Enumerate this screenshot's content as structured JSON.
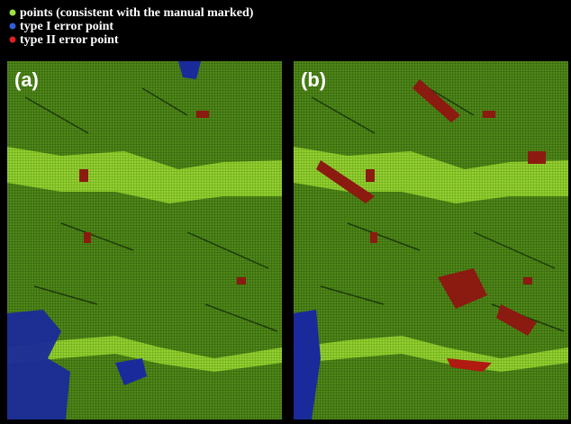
{
  "legend": {
    "items": [
      "points (consistent with the manual marked)",
      "type I error point",
      "type II error point"
    ]
  },
  "panels": [
    {
      "label": "(a)"
    },
    {
      "label": "(b)"
    }
  ]
}
